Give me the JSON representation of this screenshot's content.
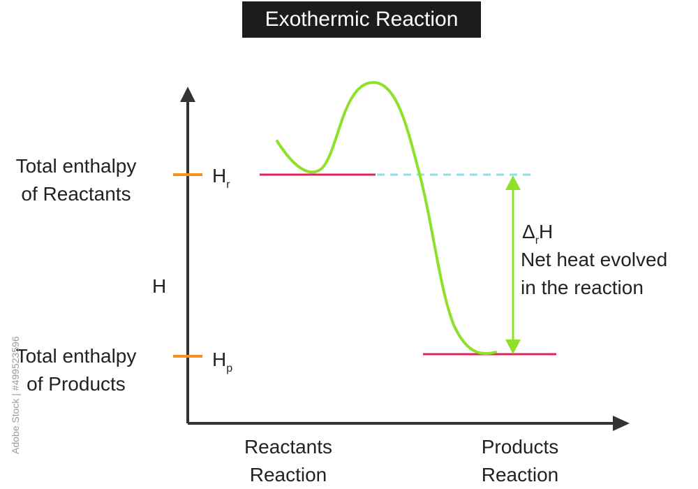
{
  "title": "Exothermic Reaction",
  "axis": {
    "y_label": "H"
  },
  "levels": {
    "reactants": {
      "label_line1": "Total enthalpy",
      "label_line2": "of Reactants",
      "symbol": "H",
      "subscript": "r"
    },
    "products": {
      "label_line1": "Total enthalpy",
      "label_line2": "of Products",
      "symbol": "H",
      "subscript": "p"
    }
  },
  "x_labels": {
    "reactants": {
      "line1": "Reactants",
      "line2": "Reaction"
    },
    "products": {
      "line1": "Products",
      "line2": "Reaction"
    }
  },
  "delta": {
    "symbol_prefix": "Δ",
    "symbol_sub": "r",
    "symbol_suffix": "H",
    "line1": "Net heat evolved",
    "line2": "in the reaction"
  },
  "watermark": "Adobe Stock | #499523596",
  "colors": {
    "axis": "#333333",
    "curve": "#8ee02a",
    "level": "#e0245e",
    "tick": "#f5921e",
    "dashed": "#8fdcec",
    "arrow": "#8ee02a",
    "title_bg": "#1c1c1c"
  }
}
